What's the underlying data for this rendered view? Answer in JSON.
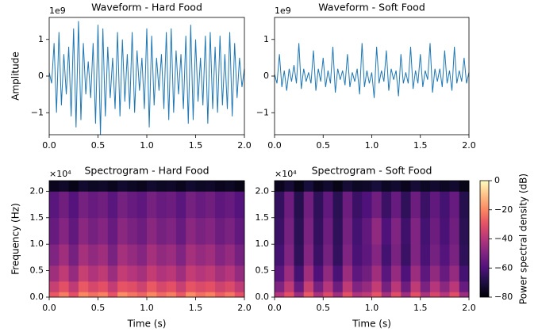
{
  "chart_data": [
    {
      "type": "line",
      "title": "Waveform - Hard Food",
      "ylabel": "Amplitude",
      "y_offset_label": "1e9",
      "color": "#1f77b4",
      "x": [
        0,
        0.025,
        0.05,
        0.075,
        0.1,
        0.125,
        0.15,
        0.175,
        0.2,
        0.225,
        0.25,
        0.275,
        0.3,
        0.325,
        0.35,
        0.375,
        0.4,
        0.425,
        0.45,
        0.475,
        0.5,
        0.525,
        0.55,
        0.575,
        0.6,
        0.625,
        0.65,
        0.675,
        0.7,
        0.725,
        0.75,
        0.775,
        0.8,
        0.825,
        0.85,
        0.875,
        0.9,
        0.925,
        0.95,
        0.975,
        1,
        1.025,
        1.05,
        1.075,
        1.1,
        1.125,
        1.15,
        1.175,
        1.2,
        1.225,
        1.25,
        1.275,
        1.3,
        1.325,
        1.35,
        1.375,
        1.4,
        1.425,
        1.45,
        1.475,
        1.5,
        1.525,
        1.55,
        1.575,
        1.6,
        1.625,
        1.65,
        1.675,
        1.7,
        1.725,
        1.75,
        1.775,
        1.8,
        1.825,
        1.85,
        1.875,
        1.9,
        1.925,
        1.95,
        1.975,
        2
      ],
      "values": [
        0.1,
        -0.2,
        0.9,
        -1.0,
        1.2,
        -0.8,
        0.6,
        -0.5,
        0.8,
        -1.1,
        1.3,
        -1.4,
        1.5,
        -1.2,
        0.9,
        -0.5,
        0.4,
        -0.6,
        0.9,
        -1.3,
        1.4,
        -1.6,
        1.3,
        -1.1,
        0.8,
        -0.6,
        0.5,
        -0.9,
        1.2,
        -1.1,
        1.0,
        -0.7,
        0.6,
        -0.9,
        1.2,
        -1.0,
        0.7,
        -0.4,
        0.5,
        -0.9,
        1.3,
        -1.4,
        1.1,
        -0.8,
        0.5,
        -0.4,
        0.6,
        -0.9,
        1.2,
        -1.2,
        1.3,
        -1.0,
        0.7,
        -0.5,
        0.6,
        -0.9,
        1.1,
        -1.3,
        1.4,
        -1.2,
        1.0,
        -0.7,
        0.5,
        -0.8,
        1.1,
        -1.3,
        1.2,
        -0.9,
        0.8,
        -1.0,
        1.1,
        -0.8,
        0.6,
        -0.9,
        1.2,
        -1.1,
        0.9,
        -0.6,
        0.5,
        -0.3,
        0.2
      ],
      "xlim": [
        0,
        2
      ],
      "xticks": [
        {
          "value": 0,
          "label": "0.0"
        },
        0.5,
        {
          "value": 1,
          "label": "1.0"
        },
        1.5,
        {
          "value": 2,
          "label": "2.0"
        }
      ],
      "ylim": [
        -1.6,
        1.6
      ],
      "yticks": [
        {
          "value": -1,
          "label": "−1"
        },
        0,
        1
      ]
    },
    {
      "type": "line",
      "title": "Waveform - Soft Food",
      "y_offset_label": "1e9",
      "color": "#1f77b4",
      "x": [
        0,
        0.025,
        0.05,
        0.075,
        0.1,
        0.125,
        0.15,
        0.175,
        0.2,
        0.225,
        0.25,
        0.275,
        0.3,
        0.325,
        0.35,
        0.375,
        0.4,
        0.425,
        0.45,
        0.475,
        0.5,
        0.525,
        0.55,
        0.575,
        0.6,
        0.625,
        0.65,
        0.675,
        0.7,
        0.725,
        0.75,
        0.775,
        0.8,
        0.825,
        0.85,
        0.875,
        0.9,
        0.925,
        0.95,
        0.975,
        1,
        1.025,
        1.05,
        1.075,
        1.1,
        1.125,
        1.15,
        1.175,
        1.2,
        1.225,
        1.25,
        1.275,
        1.3,
        1.325,
        1.35,
        1.375,
        1.4,
        1.425,
        1.45,
        1.475,
        1.5,
        1.525,
        1.55,
        1.575,
        1.6,
        1.625,
        1.65,
        1.675,
        1.7,
        1.725,
        1.75,
        1.775,
        1.8,
        1.825,
        1.85,
        1.875,
        1.9,
        1.925,
        1.95,
        1.975,
        2
      ],
      "values": [
        0.05,
        -0.2,
        0.6,
        -0.3,
        0.15,
        -0.4,
        0.2,
        -0.15,
        0.3,
        -0.2,
        0.9,
        -0.35,
        0.2,
        -0.15,
        0.1,
        -0.2,
        0.7,
        -0.4,
        0.2,
        -0.15,
        0.5,
        -0.3,
        0.15,
        -0.2,
        0.8,
        -0.45,
        0.2,
        -0.1,
        0.15,
        -0.25,
        0.6,
        -0.3,
        0.1,
        -0.15,
        0.2,
        -0.5,
        0.9,
        -0.3,
        0.15,
        -0.2,
        0.1,
        -0.6,
        0.8,
        -0.2,
        0.15,
        -0.15,
        0.7,
        -0.4,
        0.2,
        -0.1,
        0.15,
        -0.55,
        0.6,
        -0.2,
        0.1,
        -0.2,
        0.8,
        -0.35,
        0.15,
        -0.2,
        0.6,
        -0.3,
        0.15,
        -0.1,
        0.9,
        -0.45,
        0.2,
        -0.15,
        0.2,
        -0.3,
        0.7,
        -0.2,
        0.15,
        -0.4,
        0.8,
        -0.2,
        0.15,
        -0.15,
        0.5,
        -0.2,
        0.1
      ],
      "xlim": [
        0,
        2
      ],
      "xticks": [
        {
          "value": 0,
          "label": "0.0"
        },
        0.5,
        {
          "value": 1,
          "label": "1.0"
        },
        1.5,
        {
          "value": 2,
          "label": "2.0"
        }
      ],
      "ylim": [
        -1.6,
        1.6
      ],
      "yticks": [
        {
          "value": -1,
          "label": "−1"
        },
        0,
        1
      ]
    },
    {
      "type": "heatmap",
      "title": "Spectrogram - Hard Food",
      "xlabel": "Time (s)",
      "ylabel": "Frequency (Hz)",
      "y_offset_label": "×10⁴",
      "colormap": "magma",
      "x_edges": [
        0,
        0.1,
        0.2,
        0.3,
        0.4,
        0.5,
        0.6,
        0.7,
        0.8,
        0.9,
        1,
        1.1,
        1.2,
        1.3,
        1.4,
        1.5,
        1.6,
        1.7,
        1.8,
        1.9,
        2
      ],
      "y_edges": [
        0,
        0.1,
        0.3,
        0.6,
        1.0,
        1.5,
        2.0,
        2.2
      ],
      "values": [
        [
          -28,
          -22,
          -30,
          -20,
          -24,
          -21,
          -29,
          -19,
          -23,
          -26,
          -20,
          -25,
          -22,
          -28,
          -19,
          -24,
          -21,
          -27,
          -23,
          -30
        ],
        [
          -36,
          -30,
          -38,
          -28,
          -33,
          -30,
          -37,
          -29,
          -31,
          -35,
          -28,
          -33,
          -30,
          -36,
          -29,
          -32,
          -30,
          -35,
          -32,
          -38
        ],
        [
          -44,
          -38,
          -46,
          -36,
          -41,
          -38,
          -45,
          -37,
          -40,
          -43,
          -37,
          -41,
          -39,
          -44,
          -37,
          -40,
          -38,
          -43,
          -40,
          -46
        ],
        [
          -50,
          -44,
          -52,
          -43,
          -47,
          -44,
          -51,
          -43,
          -46,
          -49,
          -43,
          -47,
          -45,
          -50,
          -43,
          -46,
          -44,
          -49,
          -46,
          -52
        ],
        [
          -55,
          -49,
          -56,
          -48,
          -52,
          -49,
          -55,
          -48,
          -51,
          -54,
          -48,
          -52,
          -50,
          -55,
          -48,
          -51,
          -49,
          -54,
          -51,
          -56
        ],
        [
          -58,
          -53,
          -59,
          -52,
          -55,
          -53,
          -58,
          -52,
          -55,
          -57,
          -52,
          -55,
          -54,
          -58,
          -52,
          -55,
          -53,
          -57,
          -55,
          -59
        ],
        [
          -76,
          -74,
          -77,
          -73,
          -75,
          -74,
          -76,
          -73,
          -75,
          -76,
          -73,
          -75,
          -74,
          -76,
          -73,
          -75,
          -74,
          -76,
          -75,
          -77
        ]
      ],
      "clim": [
        -80,
        0
      ],
      "xlim": [
        0,
        2
      ],
      "xticks": [
        {
          "value": 0,
          "label": "0.0"
        },
        0.5,
        {
          "value": 1,
          "label": "1.0"
        },
        1.5,
        {
          "value": 2,
          "label": "2.0"
        }
      ],
      "ylim": [
        0,
        2.2
      ],
      "yticks": [
        {
          "value": 0,
          "label": "0.0"
        },
        0.5,
        {
          "value": 1,
          "label": "1.0"
        },
        1.5,
        {
          "value": 2,
          "label": "2.0"
        }
      ]
    },
    {
      "type": "heatmap",
      "title": "Spectrogram - Soft Food",
      "xlabel": "Time (s)",
      "y_offset_label": "×10⁴",
      "colormap": "magma",
      "x_edges": [
        0,
        0.1,
        0.2,
        0.3,
        0.4,
        0.5,
        0.6,
        0.7,
        0.8,
        0.9,
        1,
        1.1,
        1.2,
        1.3,
        1.4,
        1.5,
        1.6,
        1.7,
        1.8,
        1.9,
        2
      ],
      "y_edges": [
        0,
        0.1,
        0.3,
        0.6,
        1.0,
        1.5,
        2.0,
        2.2
      ],
      "values": [
        [
          -40,
          -30,
          -45,
          -28,
          -42,
          -32,
          -44,
          -30,
          -41,
          -38,
          -29,
          -43,
          -31,
          -44,
          -30,
          -42,
          -33,
          -40,
          -31,
          -45
        ],
        [
          -50,
          -38,
          -55,
          -36,
          -52,
          -40,
          -54,
          -38,
          -50,
          -46,
          -37,
          -52,
          -39,
          -54,
          -38,
          -51,
          -40,
          -48,
          -39,
          -55
        ],
        [
          -58,
          -45,
          -62,
          -44,
          -60,
          -47,
          -61,
          -45,
          -57,
          -53,
          -44,
          -58,
          -46,
          -60,
          -45,
          -57,
          -47,
          -55,
          -46,
          -62
        ],
        [
          -62,
          -50,
          -66,
          -49,
          -64,
          -52,
          -65,
          -50,
          -61,
          -57,
          -49,
          -62,
          -51,
          -64,
          -50,
          -61,
          -52,
          -59,
          -51,
          -66
        ],
        [
          -64,
          -52,
          -67,
          -51,
          -65,
          -54,
          -66,
          -52,
          -62,
          -56,
          -47,
          -60,
          -50,
          -63,
          -50,
          -62,
          -54,
          -61,
          -53,
          -67
        ],
        [
          -65,
          -54,
          -68,
          -53,
          -66,
          -56,
          -67,
          -54,
          -64,
          -60,
          -53,
          -64,
          -55,
          -66,
          -54,
          -64,
          -56,
          -62,
          -55,
          -68
        ],
        [
          -76,
          -72,
          -77,
          -71,
          -76,
          -73,
          -77,
          -72,
          -75,
          -74,
          -71,
          -75,
          -73,
          -76,
          -72,
          -75,
          -73,
          -75,
          -73,
          -77
        ]
      ],
      "clim": [
        -80,
        0
      ],
      "colorbar": {
        "label": "Power spectral density (dB)",
        "ticks": [
          0,
          {
            "value": -20,
            "label": "−20"
          },
          {
            "value": -40,
            "label": "−40"
          },
          {
            "value": -60,
            "label": "−60"
          },
          {
            "value": -80,
            "label": "−80"
          }
        ]
      },
      "xlim": [
        0,
        2
      ],
      "xticks": [
        {
          "value": 0,
          "label": "0.0"
        },
        0.5,
        {
          "value": 1,
          "label": "1.0"
        },
        1.5,
        {
          "value": 2,
          "label": "2.0"
        }
      ],
      "ylim": [
        0,
        2.2
      ],
      "yticks": [
        {
          "value": 0,
          "label": "0.0"
        },
        0.5,
        {
          "value": 1,
          "label": "1.0"
        },
        1.5,
        {
          "value": 2,
          "label": "2.0"
        }
      ]
    }
  ]
}
